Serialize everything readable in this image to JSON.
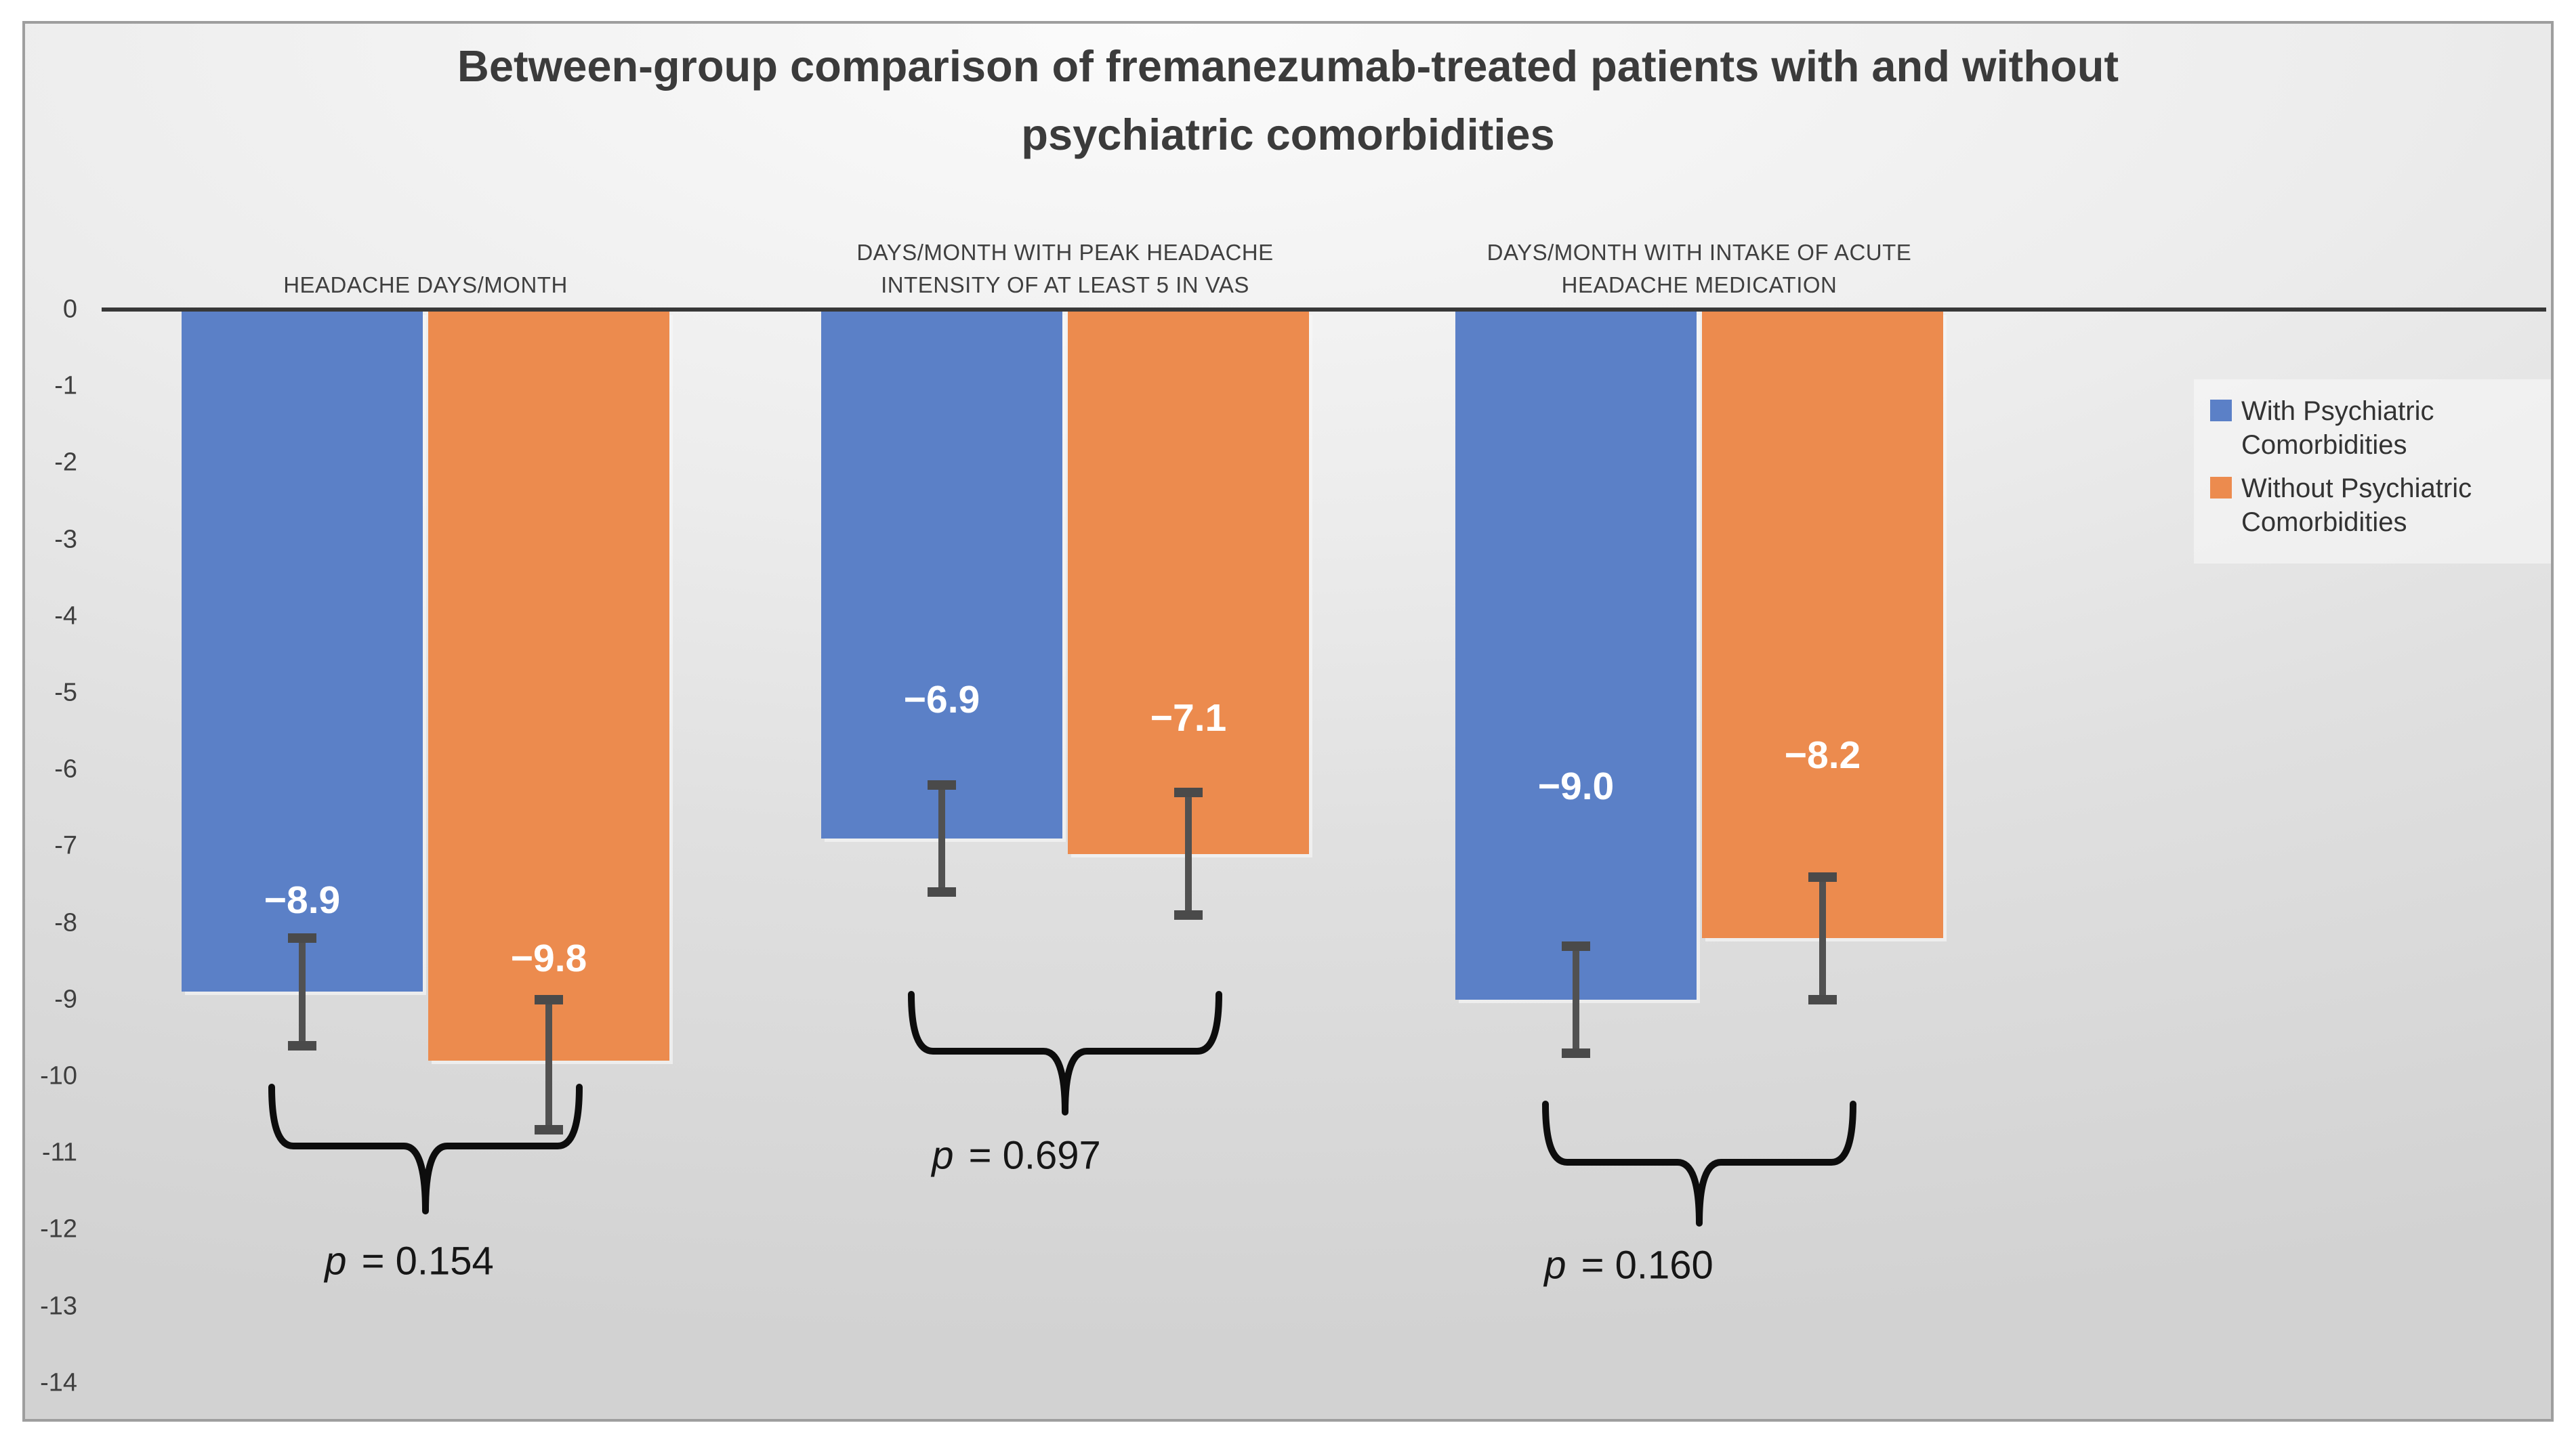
{
  "title": {
    "line1": "Between-group comparison of fremanezumab-treated patients with and without",
    "line2": "psychiatric comorbidities"
  },
  "y_axis": {
    "ticks": [
      "0",
      "-1",
      "-2",
      "-3",
      "-4",
      "-5",
      "-6",
      "-7",
      "-8",
      "-9",
      "-10",
      "-11",
      "-12",
      "-13",
      "-14"
    ]
  },
  "legend": {
    "items": [
      {
        "label": "With Psychiatric Comorbidities",
        "color": "#5b80c7"
      },
      {
        "label": "Without Psychiatric Comorbidities",
        "color": "#ec8b4e"
      }
    ]
  },
  "chart_data": {
    "type": "bar",
    "title": "Between-group comparison of fremanezumab-treated patients with and without psychiatric comorbidities",
    "categories": [
      "HEADACHE DAYS/MONTH",
      "DAYS/MONTH WITH PEAK HEADACHE INTENSITY OF AT LEAST 5  IN VAS",
      "DAYS/MONTH WITH INTAKE OF ACUTE HEADACHE MEDICATION"
    ],
    "series": [
      {
        "name": "With Psychiatric Comorbidities",
        "color": "#5b80c7",
        "values": [
          -8.9,
          -6.9,
          -9.0
        ],
        "labels": [
          "−8.9",
          "−6.9",
          "−9.0"
        ],
        "error_high": [
          -8.2,
          -6.2,
          -8.3
        ],
        "error_low": [
          -9.6,
          -7.6,
          -9.7
        ]
      },
      {
        "name": "Without Psychiatric Comorbidities",
        "color": "#ec8b4e",
        "values": [
          -9.8,
          -7.1,
          -8.2
        ],
        "labels": [
          "−9.8",
          "−7.1",
          "−8.2"
        ],
        "error_high": [
          -9.0,
          -6.3,
          -7.4
        ],
        "error_low": [
          -10.7,
          -7.9,
          -9.0
        ]
      }
    ],
    "p_values": [
      {
        "sym": "p",
        "rest": "= 0.154"
      },
      {
        "sym": "p",
        "rest": "= 0.697"
      },
      {
        "sym": "p",
        "rest": "= 0.160"
      }
    ],
    "ylabel": "",
    "xlabel": "",
    "ylim": [
      -14,
      0
    ],
    "grid": false,
    "legend_position": "right",
    "axis_color": "#383838",
    "background": "gray-gradient"
  }
}
